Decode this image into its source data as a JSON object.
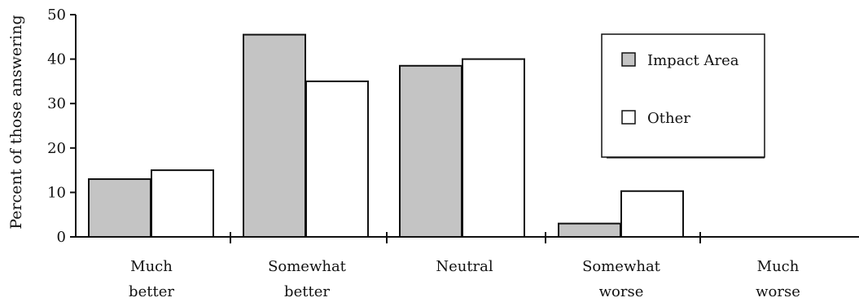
{
  "chart_data": {
    "type": "bar",
    "title": "",
    "xlabel": "",
    "ylabel": "Percent of those answering",
    "ylim": [
      0,
      50
    ],
    "yticks": [
      0,
      10,
      20,
      30,
      40,
      50
    ],
    "categories": [
      [
        "Much",
        "better"
      ],
      [
        "Somewhat",
        "better"
      ],
      [
        "Neutral"
      ],
      [
        "Somewhat",
        "worse"
      ],
      [
        "Much",
        "worse"
      ]
    ],
    "series": [
      {
        "name": "Impact Area",
        "values": [
          13,
          45.5,
          38.5,
          3,
          0
        ],
        "color": "#c4c4c4"
      },
      {
        "name": "Other",
        "values": [
          15,
          35,
          40,
          10.3,
          0
        ],
        "color": "#ffffff"
      }
    ],
    "legend": {
      "position": "top-right",
      "entries": [
        "Impact Area",
        "Other"
      ]
    },
    "grid": false,
    "colors": {
      "stroke": "#111111",
      "impact_fill": "#c4c4c4",
      "other_fill": "#ffffff"
    }
  }
}
